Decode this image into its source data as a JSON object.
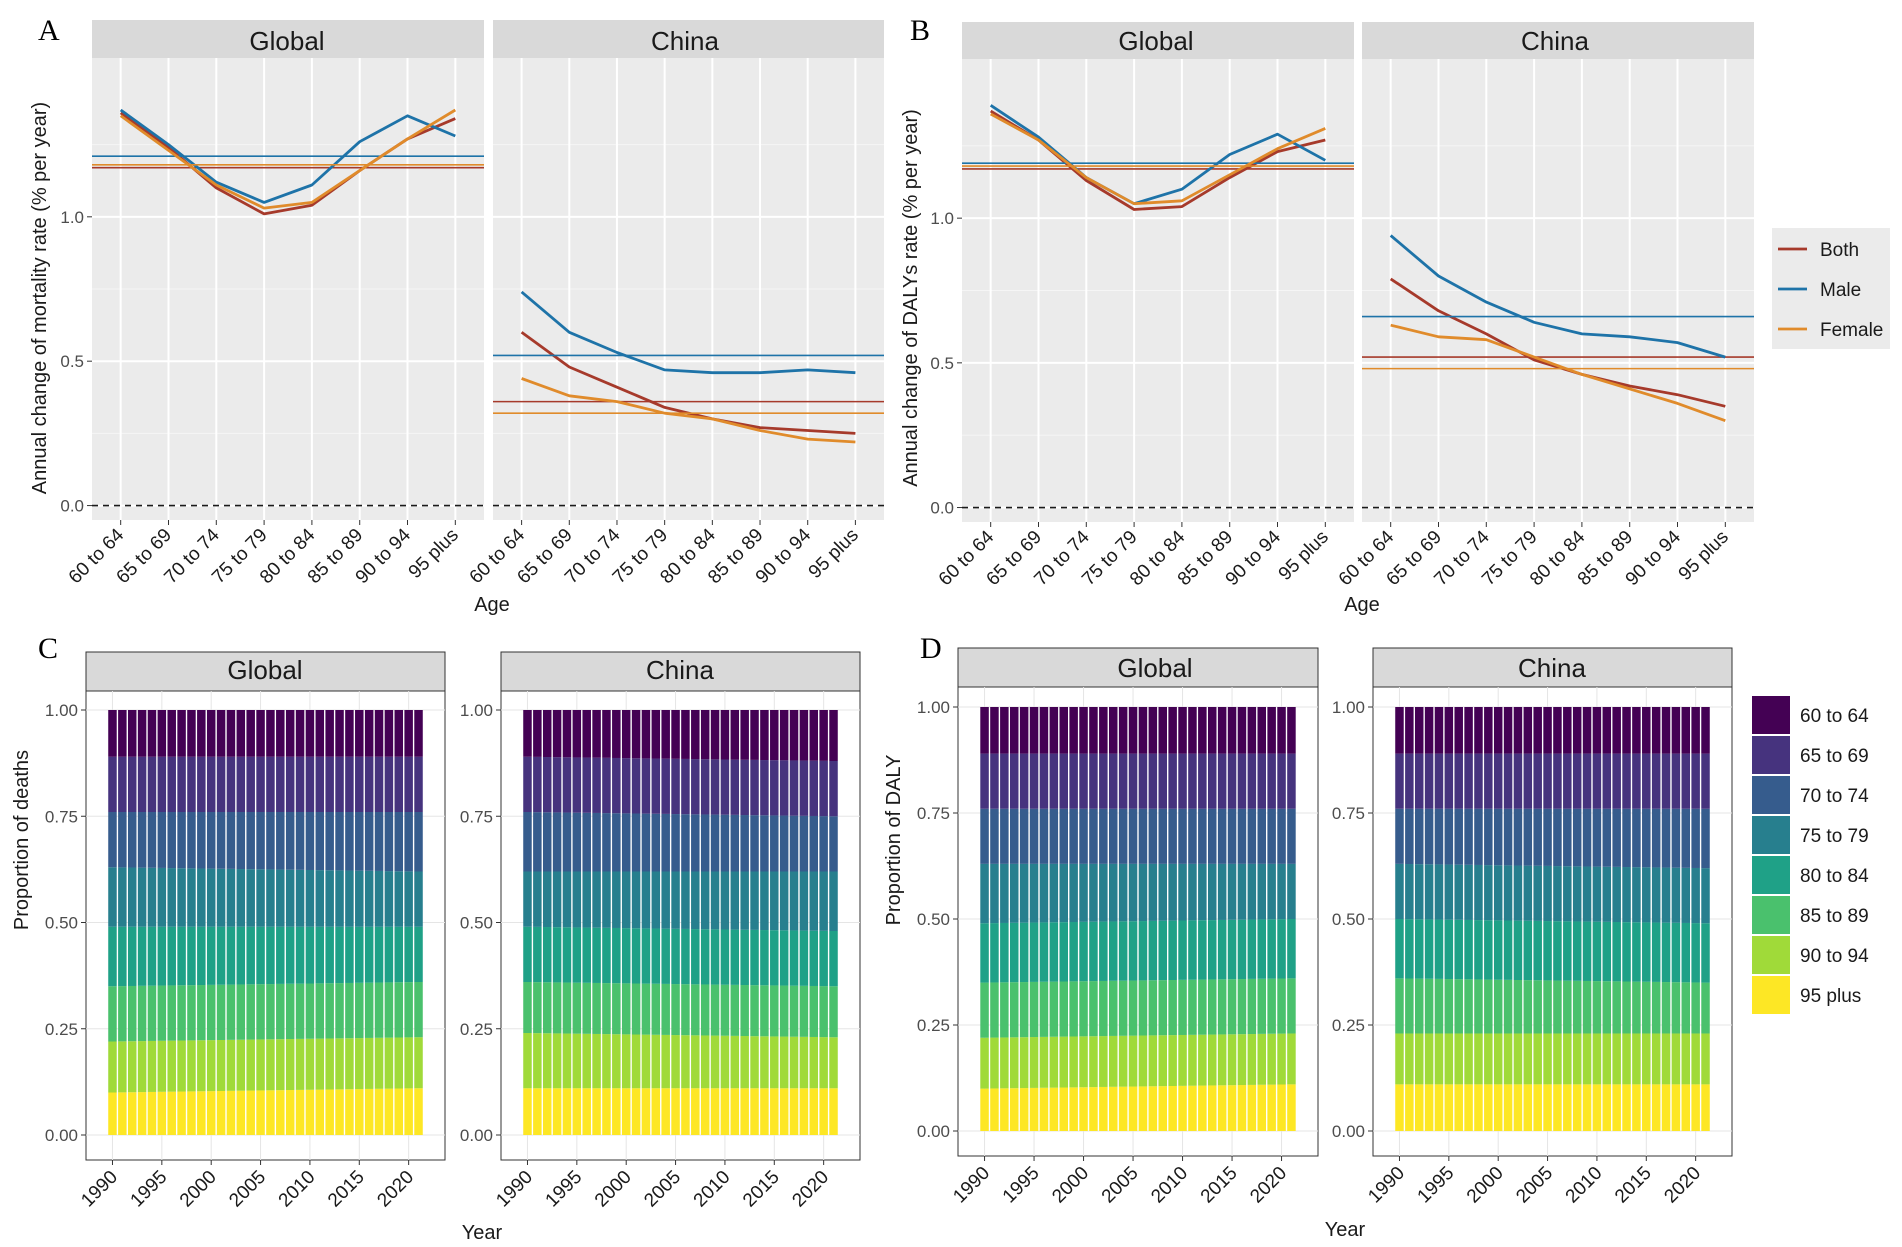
{
  "chart_data": [
    {
      "panel": "A",
      "type": "line",
      "facets": [
        "Global",
        "China"
      ],
      "xlabel": "Age",
      "ylabel": "Annual change of mortality  rate (% per year)",
      "categories": [
        "60 to 64",
        "65 to 69",
        "70 to 74",
        "75 to 79",
        "80 to 84",
        "85 to 89",
        "90 to 94",
        "95 plus"
      ],
      "ylim": [
        -0.05,
        1.55
      ],
      "yticks": [
        "0.0",
        "0.5",
        "1.0"
      ],
      "reference_line": 0,
      "series": [
        {
          "name": "Both",
          "facet": "Global",
          "values": [
            1.36,
            1.24,
            1.1,
            1.01,
            1.04,
            1.16,
            1.27,
            1.34
          ],
          "overall": 1.17
        },
        {
          "name": "Male",
          "facet": "Global",
          "values": [
            1.37,
            1.25,
            1.12,
            1.05,
            1.11,
            1.26,
            1.35,
            1.28
          ],
          "overall": 1.21
        },
        {
          "name": "Female",
          "facet": "Global",
          "values": [
            1.35,
            1.23,
            1.11,
            1.03,
            1.05,
            1.16,
            1.27,
            1.37
          ],
          "overall": 1.18
        },
        {
          "name": "Both",
          "facet": "China",
          "values": [
            0.6,
            0.48,
            0.41,
            0.34,
            0.3,
            0.27,
            0.26,
            0.25
          ],
          "overall": 0.36
        },
        {
          "name": "Male",
          "facet": "China",
          "values": [
            0.74,
            0.6,
            0.53,
            0.47,
            0.46,
            0.46,
            0.47,
            0.46
          ],
          "overall": 0.52
        },
        {
          "name": "Female",
          "facet": "China",
          "values": [
            0.44,
            0.38,
            0.36,
            0.32,
            0.3,
            0.26,
            0.23,
            0.22
          ],
          "overall": 0.32
        }
      ]
    },
    {
      "panel": "B",
      "type": "line",
      "facets": [
        "Global",
        "China"
      ],
      "xlabel": "Age",
      "ylabel": "Annual change of DALYs rate (% per year)",
      "categories": [
        "60 to 64",
        "65 to 69",
        "70 to 74",
        "75 to 79",
        "80 to 84",
        "85 to 89",
        "90 to 94",
        "95 plus"
      ],
      "ylim": [
        -0.05,
        1.55
      ],
      "yticks": [
        "0.0",
        "0.5",
        "1.0"
      ],
      "reference_line": 0,
      "series": [
        {
          "name": "Both",
          "facet": "Global",
          "values": [
            1.37,
            1.27,
            1.13,
            1.03,
            1.04,
            1.14,
            1.23,
            1.27
          ],
          "overall": 1.17
        },
        {
          "name": "Male",
          "facet": "Global",
          "values": [
            1.39,
            1.28,
            1.14,
            1.05,
            1.1,
            1.22,
            1.29,
            1.2
          ],
          "overall": 1.19
        },
        {
          "name": "Female",
          "facet": "Global",
          "values": [
            1.36,
            1.27,
            1.14,
            1.05,
            1.06,
            1.15,
            1.24,
            1.31
          ],
          "overall": 1.18
        },
        {
          "name": "Both",
          "facet": "China",
          "values": [
            0.79,
            0.68,
            0.6,
            0.51,
            0.46,
            0.42,
            0.39,
            0.35
          ],
          "overall": 0.52
        },
        {
          "name": "Male",
          "facet": "China",
          "values": [
            0.94,
            0.8,
            0.71,
            0.64,
            0.6,
            0.59,
            0.57,
            0.52
          ],
          "overall": 0.66
        },
        {
          "name": "Female",
          "facet": "China",
          "values": [
            0.63,
            0.59,
            0.58,
            0.52,
            0.46,
            0.41,
            0.36,
            0.3
          ],
          "overall": 0.48
        }
      ]
    },
    {
      "panel": "C",
      "type": "bar",
      "stacked": true,
      "facets": [
        "Global",
        "China"
      ],
      "xlabel": "Year",
      "ylabel": "Proportion of deaths",
      "ylim": [
        0,
        1
      ],
      "yticks": [
        "0.00",
        "0.25",
        "0.50",
        "0.75",
        "1.00"
      ],
      "xticks": [
        "1990",
        "1995",
        "2000",
        "2005",
        "2010",
        "2015",
        "2020"
      ],
      "years": [
        1990,
        1991,
        1992,
        1993,
        1994,
        1995,
        1996,
        1997,
        1998,
        1999,
        2000,
        2001,
        2002,
        2003,
        2004,
        2005,
        2006,
        2007,
        2008,
        2009,
        2010,
        2011,
        2012,
        2013,
        2014,
        2015,
        2016,
        2017,
        2018,
        2019,
        2020,
        2021
      ],
      "boundaries_first_year": {
        "Global": [
          0.1,
          0.22,
          0.35,
          0.49,
          0.63,
          0.76,
          0.89
        ],
        "China": [
          0.11,
          0.24,
          0.36,
          0.49,
          0.62,
          0.76,
          0.89
        ]
      },
      "boundaries_last_year": {
        "Global": [
          0.11,
          0.23,
          0.36,
          0.49,
          0.62,
          0.76,
          0.89
        ],
        "China": [
          0.11,
          0.23,
          0.35,
          0.48,
          0.62,
          0.75,
          0.88
        ]
      }
    },
    {
      "panel": "D",
      "type": "bar",
      "stacked": true,
      "facets": [
        "Global",
        "China"
      ],
      "xlabel": "Year",
      "ylabel": "Proportion of DALY",
      "ylim": [
        0,
        1
      ],
      "yticks": [
        "0.00",
        "0.25",
        "0.50",
        "0.75",
        "1.00"
      ],
      "xticks": [
        "1990",
        "1995",
        "2000",
        "2005",
        "2010",
        "2015",
        "2020"
      ],
      "years": [
        1990,
        1991,
        1992,
        1993,
        1994,
        1995,
        1996,
        1997,
        1998,
        1999,
        2000,
        2001,
        2002,
        2003,
        2004,
        2005,
        2006,
        2007,
        2008,
        2009,
        2010,
        2011,
        2012,
        2013,
        2014,
        2015,
        2016,
        2017,
        2018,
        2019,
        2020,
        2021
      ],
      "boundaries_first_year": {
        "Global": [
          0.1,
          0.22,
          0.35,
          0.49,
          0.63,
          0.76,
          0.89
        ],
        "China": [
          0.11,
          0.23,
          0.36,
          0.5,
          0.63,
          0.76,
          0.89
        ]
      },
      "boundaries_last_year": {
        "Global": [
          0.11,
          0.23,
          0.36,
          0.5,
          0.63,
          0.76,
          0.89
        ],
        "China": [
          0.11,
          0.23,
          0.35,
          0.49,
          0.62,
          0.76,
          0.89
        ]
      }
    }
  ],
  "panels": {
    "a": {
      "letter": "A",
      "facet1": "Global",
      "facet2": "China",
      "xlabel": "Age",
      "ylabel": "Annual change of mortality  rate (% per year)"
    },
    "b": {
      "letter": "B",
      "facet1": "Global",
      "facet2": "China",
      "xlabel": "Age",
      "ylabel": "Annual change of DALYs rate (% per year)"
    },
    "c": {
      "letter": "C",
      "facet1": "Global",
      "facet2": "China",
      "xlabel": "Year",
      "ylabel": "Proportion of deaths"
    },
    "d": {
      "letter": "D",
      "facet1": "Global",
      "facet2": "China",
      "xlabel": "Year",
      "ylabel": "Proportion of DALY"
    }
  },
  "sex_legend": [
    {
      "label": "Both",
      "color": "#a63a2b"
    },
    {
      "label": "Male",
      "color": "#1e73a8"
    },
    {
      "label": "Female",
      "color": "#e08b2b"
    }
  ],
  "age_legend": [
    {
      "label": "60 to 64",
      "color": "#440154"
    },
    {
      "label": "65 to 69",
      "color": "#46337e"
    },
    {
      "label": "70 to 74",
      "color": "#365c8d"
    },
    {
      "label": "75 to 79",
      "color": "#277f8e"
    },
    {
      "label": "80 to 84",
      "color": "#1fa187"
    },
    {
      "label": "85 to 89",
      "color": "#4ac16d"
    },
    {
      "label": "90 to 94",
      "color": "#a0da39"
    },
    {
      "label": "95 plus",
      "color": "#fde725"
    }
  ]
}
